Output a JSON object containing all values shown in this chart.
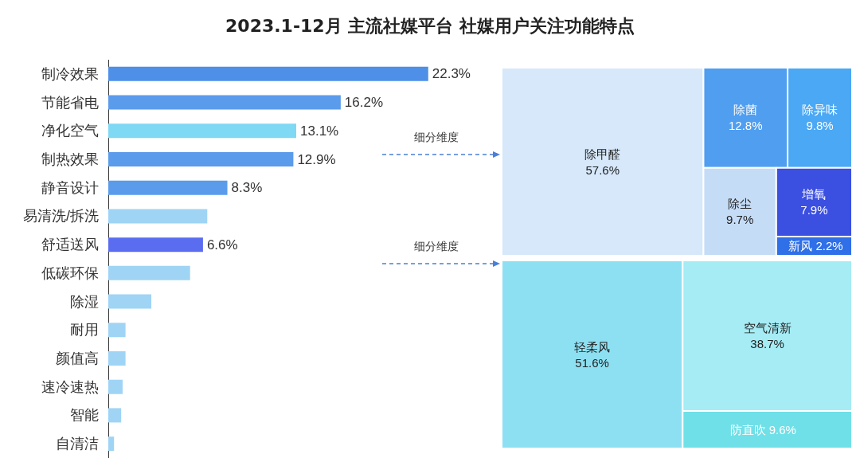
{
  "chart_data": [
    {
      "type": "bar",
      "orientation": "horizontal",
      "title": "2023.1-12月 主流社媒平台 社媒用户关注功能特点",
      "categories": [
        "制冷效果",
        "节能省电",
        "净化空气",
        "制热效果",
        "静音设计",
        "易清洗/拆洗",
        "舒适送风",
        "低碳环保",
        "除湿",
        "耐用",
        "颜值高",
        "速冷速热",
        "智能",
        "自清洁"
      ],
      "values": [
        22.3,
        16.2,
        13.1,
        12.9,
        8.3,
        6.9,
        6.6,
        5.7,
        3.0,
        1.2,
        1.2,
        1.0,
        0.9,
        0.4
      ],
      "value_labels": [
        "22.3%",
        "16.2%",
        "13.1%",
        "12.9%",
        "8.3%",
        null,
        "6.6%",
        null,
        null,
        null,
        null,
        null,
        null,
        null
      ],
      "colors": [
        "#4e8fe8",
        "#5a9bec",
        "#7fd8f4",
        "#5a9bec",
        "#5a9bec",
        "#9fd4f5",
        "#5a6cf0",
        "#9fd4f5",
        "#9fd4f5",
        "#9fd4f5",
        "#9fd4f5",
        "#9fd4f5",
        "#9fd4f5",
        "#9fd4f5"
      ],
      "annotations": [
        "细分维度",
        "细分维度"
      ]
    },
    {
      "type": "other",
      "categories": [
        "除甲醛",
        "除菌",
        "除异味",
        "除尘",
        "增氧",
        "新风"
      ],
      "values": [
        57.6,
        12.8,
        9.8,
        9.7,
        7.9,
        2.2
      ],
      "value_labels": [
        "57.6%",
        "12.8%",
        "9.8%",
        "9.7%",
        "7.9%",
        "2.2%"
      ],
      "colors": [
        "#d6e8fa",
        "#4f9ef0",
        "#4aa8f5",
        "#c5dcf7",
        "#3b4fe0",
        "#2f6fe8"
      ]
    },
    {
      "type": "other",
      "categories": [
        "轻柔风",
        "空气清新",
        "防直吹"
      ],
      "values": [
        51.6,
        38.7,
        9.6
      ],
      "value_labels": [
        "51.6%",
        "38.7%",
        "9.6%"
      ],
      "colors": [
        "#8de0f2",
        "#a5ecf5",
        "#6fe0e8"
      ]
    }
  ]
}
